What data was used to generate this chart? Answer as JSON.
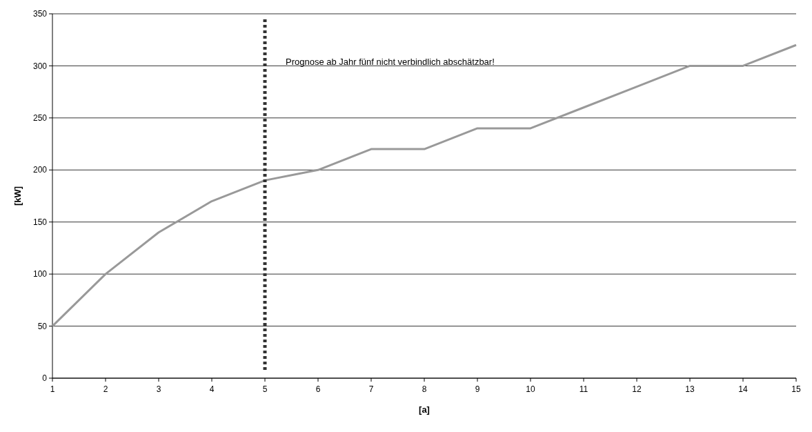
{
  "chart_data": {
    "type": "line",
    "xlabel": "[a]",
    "ylabel": "[kW]",
    "x": [
      1,
      2,
      3,
      4,
      5,
      6,
      7,
      8,
      9,
      10,
      11,
      12,
      13,
      14,
      15
    ],
    "series": [
      {
        "color": "#999999",
        "values": [
          50,
          100,
          140,
          170,
          190,
          200,
          220,
          220,
          240,
          240,
          260,
          280,
          300,
          300,
          320
        ]
      }
    ],
    "xlim": [
      1,
      15
    ],
    "xticks": [
      1,
      2,
      3,
      4,
      5,
      6,
      7,
      8,
      9,
      10,
      11,
      12,
      13,
      14,
      15
    ],
    "ylim": [
      0,
      350
    ],
    "yticks": [
      0,
      50,
      100,
      150,
      200,
      250,
      300,
      350
    ],
    "grid": "y",
    "line_style": "solid",
    "ref_lines": [
      {
        "axis": "x",
        "value": 5,
        "label": "Prognose ab Jahr fünf nicht verbindlich abschätzbar!",
        "color": "#333333",
        "line_style": "dotted"
      }
    ]
  }
}
